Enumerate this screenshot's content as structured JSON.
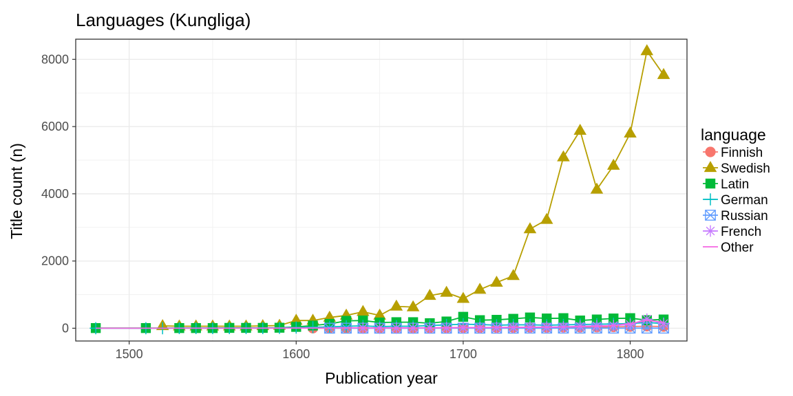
{
  "chart_data": {
    "type": "line",
    "title": "Languages (Kungliga)",
    "xlabel": "Publication year",
    "ylabel": "Title count (n)",
    "xlim": [
      1468,
      1834
    ],
    "ylim": [
      -380,
      8600
    ],
    "x_ticks": [
      1500,
      1600,
      1700,
      1800
    ],
    "x_tick_labels": [
      "1500",
      "1600",
      "1700",
      "1800"
    ],
    "y_ticks": [
      0,
      2000,
      4000,
      6000,
      8000
    ],
    "y_tick_labels": [
      "0",
      "2000",
      "4000",
      "6000",
      "8000"
    ],
    "grid": true,
    "legend_title": "language",
    "legend_position": "right",
    "series": [
      {
        "name": "Finnish",
        "color": "#F8766D",
        "marker": "circle",
        "x": [
          1610,
          1620,
          1630,
          1640,
          1650,
          1660,
          1670,
          1680,
          1690,
          1700,
          1710,
          1720,
          1730,
          1740,
          1750,
          1760,
          1770,
          1780,
          1790,
          1800,
          1810,
          1820
        ],
        "y": [
          2,
          3,
          5,
          5,
          5,
          5,
          6,
          8,
          10,
          15,
          15,
          18,
          20,
          25,
          25,
          30,
          30,
          35,
          40,
          50,
          60,
          50
        ]
      },
      {
        "name": "Swedish",
        "color": "#B79F00",
        "marker": "triangle",
        "x": [
          1520,
          1530,
          1540,
          1550,
          1560,
          1570,
          1580,
          1590,
          1600,
          1610,
          1620,
          1630,
          1640,
          1650,
          1660,
          1670,
          1680,
          1690,
          1700,
          1710,
          1720,
          1730,
          1740,
          1750,
          1760,
          1770,
          1780,
          1790,
          1800,
          1810,
          1820
        ],
        "y": [
          70,
          60,
          60,
          60,
          60,
          60,
          70,
          80,
          230,
          230,
          320,
          380,
          490,
          380,
          650,
          630,
          970,
          1060,
          880,
          1150,
          1360,
          1560,
          2950,
          3230,
          5090,
          5880,
          4130,
          4840,
          5800,
          8250,
          7540
        ]
      },
      {
        "name": "Latin",
        "color": "#00BA38",
        "marker": "square",
        "x": [
          1480,
          1510,
          1530,
          1540,
          1550,
          1560,
          1570,
          1580,
          1590,
          1600,
          1610,
          1620,
          1630,
          1640,
          1650,
          1660,
          1670,
          1680,
          1690,
          1700,
          1710,
          1720,
          1730,
          1740,
          1750,
          1760,
          1770,
          1780,
          1790,
          1800,
          1810,
          1820
        ],
        "y": [
          5,
          5,
          5,
          5,
          5,
          10,
          10,
          10,
          15,
          40,
          80,
          130,
          220,
          230,
          170,
          180,
          180,
          150,
          200,
          340,
          240,
          250,
          280,
          320,
          290,
          300,
          230,
          260,
          290,
          300,
          240,
          260
        ]
      },
      {
        "name": "German",
        "color": "#00BFC4",
        "marker": "plus",
        "x": [
          1480,
          1510,
          1520,
          1530,
          1540,
          1550,
          1560,
          1570,
          1580,
          1590,
          1600,
          1610,
          1620,
          1630,
          1640,
          1650,
          1660,
          1670,
          1680,
          1690,
          1700,
          1710,
          1720,
          1730,
          1740,
          1750,
          1760,
          1770,
          1780,
          1790,
          1800,
          1810,
          1820
        ],
        "y": [
          0,
          0,
          0,
          5,
          5,
          5,
          5,
          5,
          5,
          10,
          20,
          30,
          40,
          60,
          70,
          50,
          60,
          60,
          80,
          100,
          120,
          110,
          90,
          100,
          100,
          90,
          100,
          110,
          120,
          130,
          140,
          170,
          140
        ]
      },
      {
        "name": "Russian",
        "color": "#619CFF",
        "marker": "boxcross",
        "x": [
          1620,
          1630,
          1640,
          1650,
          1660,
          1670,
          1680,
          1690,
          1700,
          1710,
          1720,
          1730,
          1740,
          1750,
          1760,
          1770,
          1780,
          1790,
          1800,
          1810,
          1820
        ],
        "y": [
          1,
          1,
          1,
          1,
          1,
          1,
          1,
          1,
          2,
          2,
          2,
          2,
          3,
          3,
          3,
          3,
          3,
          3,
          3,
          3,
          3
        ]
      },
      {
        "name": "French",
        "color": "#C77CFF",
        "marker": "asterisk",
        "x": [
          1640,
          1650,
          1660,
          1670,
          1680,
          1690,
          1700,
          1710,
          1720,
          1730,
          1740,
          1750,
          1760,
          1770,
          1780,
          1790,
          1800,
          1810,
          1820
        ],
        "y": [
          5,
          5,
          5,
          5,
          8,
          10,
          15,
          15,
          20,
          25,
          30,
          35,
          40,
          60,
          70,
          80,
          110,
          270,
          140
        ]
      },
      {
        "name": "Other",
        "color": "#F564E3",
        "marker": "none",
        "x": [
          1480,
          1510,
          1520,
          1530,
          1540,
          1550,
          1560,
          1570,
          1580,
          1590,
          1600,
          1610,
          1620,
          1630,
          1640,
          1650,
          1660,
          1670,
          1680,
          1690,
          1700,
          1710,
          1720,
          1730,
          1740,
          1750,
          1760,
          1770,
          1780,
          1790,
          1800,
          1810,
          1820
        ],
        "y": [
          0,
          0,
          0,
          0,
          0,
          0,
          0,
          0,
          2,
          2,
          5,
          5,
          5,
          10,
          10,
          10,
          10,
          10,
          10,
          15,
          20,
          20,
          20,
          25,
          30,
          30,
          35,
          50,
          60,
          80,
          140,
          230,
          180
        ]
      }
    ]
  }
}
